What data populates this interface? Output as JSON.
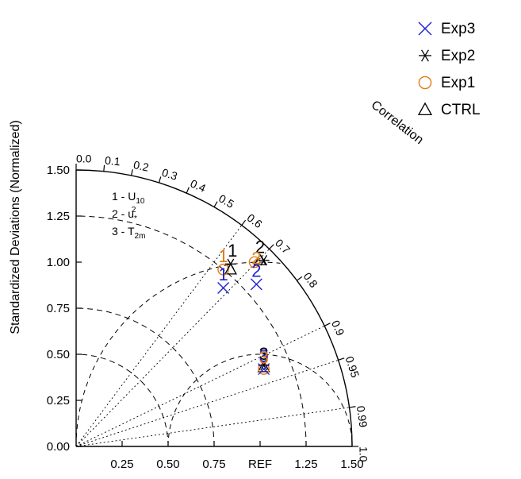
{
  "chart_data": {
    "type": "taylor",
    "ylabel": "Standardized Deviations (Normalized)",
    "arc_label": "Correlation",
    "ref_label": "REF",
    "x_ticks": [
      {
        "value": 0.25,
        "label": "0.25"
      },
      {
        "value": 0.5,
        "label": "0.50"
      },
      {
        "value": 0.75,
        "label": "0.75"
      },
      {
        "value": 1.0,
        "label": "REF"
      },
      {
        "value": 1.25,
        "label": "1.25"
      },
      {
        "value": 1.5,
        "label": "1.50"
      }
    ],
    "y_ticks": [
      {
        "value": 0.0,
        "label": "0.00"
      },
      {
        "value": 0.25,
        "label": "0.25"
      },
      {
        "value": 0.5,
        "label": "0.50"
      },
      {
        "value": 0.75,
        "label": "0.75"
      },
      {
        "value": 1.0,
        "label": "1.00"
      },
      {
        "value": 1.25,
        "label": "1.25"
      },
      {
        "value": 1.5,
        "label": "1.50"
      }
    ],
    "corr_ticks": [
      {
        "value": 0.0,
        "label": "0.0"
      },
      {
        "value": 0.1,
        "label": "0.1"
      },
      {
        "value": 0.2,
        "label": "0.2"
      },
      {
        "value": 0.3,
        "label": "0.3"
      },
      {
        "value": 0.4,
        "label": "0.4"
      },
      {
        "value": 0.5,
        "label": "0.5"
      },
      {
        "value": 0.6,
        "label": "0.6"
      },
      {
        "value": 0.7,
        "label": "0.7"
      },
      {
        "value": 0.8,
        "label": "0.8"
      },
      {
        "value": 0.9,
        "label": "0.9"
      },
      {
        "value": 0.95,
        "label": "0.95"
      },
      {
        "value": 0.99,
        "label": "0.99"
      },
      {
        "value": 1.0,
        "label": "1.0"
      }
    ],
    "corr_rays": [
      0.6,
      0.7,
      0.9,
      0.95,
      0.99
    ],
    "std_arcs": [
      0.5,
      0.75,
      1.25
    ],
    "rms_arcs": [
      0.5,
      1.0
    ],
    "std_range": [
      0,
      1.5
    ],
    "legend": [
      {
        "name": "Exp3",
        "marker": "x",
        "color": "#1f1fd6"
      },
      {
        "name": "Exp2",
        "marker": "asterisk",
        "color": "#000000"
      },
      {
        "name": "Exp1",
        "marker": "circle",
        "color": "#e07b16"
      },
      {
        "name": "CTRL",
        "marker": "triangle",
        "color": "#000000"
      }
    ],
    "variables": [
      {
        "id": "1",
        "text": "1 - U",
        "sub": "10",
        "sup": ""
      },
      {
        "id": "2",
        "text": "2 - u",
        "sub": "*",
        "sup": "2"
      },
      {
        "id": "3",
        "text": "3 - T",
        "sub": "2m",
        "sup": ""
      }
    ],
    "points": [
      {
        "series": "CTRL",
        "var": "1",
        "x": 0.84,
        "y": 0.96
      },
      {
        "series": "Exp1",
        "var": "1",
        "x": 0.8,
        "y": 0.96
      },
      {
        "series": "Exp2",
        "var": "1",
        "x": 0.84,
        "y": 0.99
      },
      {
        "series": "Exp3",
        "var": "1",
        "x": 0.8,
        "y": 0.86
      },
      {
        "series": "CTRL",
        "var": "2",
        "x": 1.0,
        "y": 1.01
      },
      {
        "series": "Exp1",
        "var": "2",
        "x": 0.97,
        "y": 1.0
      },
      {
        "series": "Exp2",
        "var": "2",
        "x": 1.02,
        "y": 1.01
      },
      {
        "series": "Exp3",
        "var": "2",
        "x": 0.98,
        "y": 0.88
      },
      {
        "series": "CTRL",
        "var": "3",
        "x": 1.02,
        "y": 0.43
      },
      {
        "series": "Exp1",
        "var": "3",
        "x": 1.02,
        "y": 0.42
      },
      {
        "series": "Exp2",
        "var": "3",
        "x": 1.02,
        "y": 0.44
      },
      {
        "series": "Exp3",
        "var": "3",
        "x": 1.02,
        "y": 0.42
      }
    ],
    "point_labels": [
      {
        "text": "1",
        "color": "#000000",
        "x": 0.85,
        "y": 1.03
      },
      {
        "text": "1",
        "color": "#e07b16",
        "x": 0.8,
        "y": 1.0
      },
      {
        "text": "1",
        "color": "#1f1fd6",
        "x": 0.8,
        "y": 0.9
      },
      {
        "text": "2",
        "color": "#000000",
        "x": 1.0,
        "y": 1.05
      },
      {
        "text": "2",
        "color": "#e07b16",
        "x": 0.98,
        "y": 0.99
      },
      {
        "text": "2",
        "color": "#1f1fd6",
        "x": 0.98,
        "y": 0.92
      },
      {
        "text": "3",
        "color": "#000000",
        "x": 1.02,
        "y": 0.47
      },
      {
        "text": "3",
        "color": "#1f1fd6",
        "x": 1.02,
        "y": 0.46
      },
      {
        "text": "3",
        "color": "#e07b16",
        "x": 1.02,
        "y": 0.45
      }
    ]
  }
}
